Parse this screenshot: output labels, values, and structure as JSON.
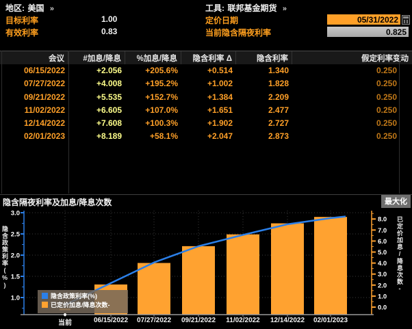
{
  "header": {
    "region_label": "地区:",
    "region_value": "美国",
    "region_more": "»",
    "target_rate_label": "目标利率",
    "target_rate_value": "1.00",
    "effective_rate_label": "有效利率",
    "effective_rate_value": "0.83",
    "tool_label": "工具:",
    "tool_value": "联邦基金期货",
    "tool_more": "»",
    "pricing_date_label": "定价日期",
    "pricing_date_value": "05/31/2022",
    "implied_overnight_label": "当前隐含隔夜利率",
    "implied_overnight_value": "0.825"
  },
  "table": {
    "columns": [
      "会议",
      "#加息/降息",
      "%加息/降息",
      "隐含利率 Δ",
      "隐含利率",
      "假定利率变动"
    ],
    "rows": [
      [
        "06/15/2022",
        "+2.056",
        "+205.6%",
        "+0.514",
        "1.340",
        "0.250"
      ],
      [
        "07/27/2022",
        "+4.008",
        "+195.2%",
        "+1.002",
        "1.828",
        "0.250"
      ],
      [
        "09/21/2022",
        "+5.535",
        "+152.7%",
        "+1.384",
        "2.209",
        "0.250"
      ],
      [
        "11/02/2022",
        "+6.605",
        "+107.0%",
        "+1.651",
        "2.477",
        "0.250"
      ],
      [
        "12/14/2022",
        "+7.608",
        "+100.3%",
        "+1.902",
        "2.727",
        "0.250"
      ],
      [
        "02/01/2023",
        "+8.189",
        "+58.1%",
        "+2.047",
        "2.873",
        "0.250"
      ]
    ]
  },
  "chart": {
    "title": "隐含隔夜利率及加息/降息次数",
    "maximize_label": "最大化"
  },
  "chart_data": {
    "type": "bar+line combo",
    "categories": [
      "当前",
      "06/15/2022",
      "07/27/2022",
      "09/21/2022",
      "11/02/2022",
      "12/14/2022",
      "02/01/2023"
    ],
    "series": [
      {
        "name": "隐含政策利率(%)",
        "type": "line",
        "axis": "left",
        "color": "#2b7fe8",
        "values": [
          0.825,
          1.34,
          1.828,
          2.209,
          2.477,
          2.727,
          2.873
        ]
      },
      {
        "name": "已定价加息/降息次数-",
        "type": "bar",
        "axis": "right",
        "color": "#ffa230",
        "values": [
          0,
          2.056,
          4.008,
          5.535,
          6.605,
          7.608,
          8.189
        ]
      }
    ],
    "left_axis": {
      "label": "隐含政策利率(%)",
      "ticks": [
        1.0,
        1.5,
        2.0,
        2.5,
        3.0
      ],
      "range": [
        0.6,
        3.05
      ]
    },
    "right_axis": {
      "label": "已定价加息/降息次数-",
      "ticks": [
        0,
        1,
        2,
        3,
        4,
        5,
        6,
        7,
        8
      ],
      "range": [
        -0.7,
        8.8
      ]
    },
    "grid": "dotted",
    "legend_position": "bottom-left"
  },
  "colors": {
    "background": "#000000",
    "label_orange": "#ff9f1e",
    "value_yellow": "#ffff8b",
    "value_orange": "#ffa028",
    "value_dim_orange": "#c07818",
    "line_blue": "#2b7fe8",
    "bar_orange": "#ffa230",
    "date_field_bg": "#ffa028",
    "gray_field_bg": "#b5b5b5"
  }
}
